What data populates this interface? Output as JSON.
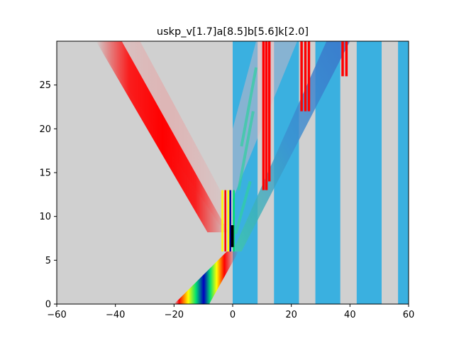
{
  "chart_data": {
    "type": "heatmap",
    "title": "uskp_v[1.7]a[8.5]b[5.6]k[2.0]",
    "xlabel": "",
    "ylabel": "",
    "xlim": [
      -60,
      60
    ],
    "ylim": [
      0,
      30
    ],
    "x_ticks": [
      -60,
      -40,
      -20,
      0,
      20,
      40,
      60
    ],
    "x_tick_labels": [
      "−60",
      "−40",
      "−20",
      "0",
      "20",
      "40",
      "60"
    ],
    "y_ticks": [
      0,
      5,
      10,
      15,
      20,
      25
    ],
    "y_tick_labels": [
      "0",
      "5",
      "10",
      "15",
      "20",
      "25"
    ],
    "grid": false,
    "background_value_color": "#d0d0d0",
    "colormap": "jet",
    "barrier_color": "#3ab0e0",
    "barrier_intervals_x": [
      [
        0,
        8.5
      ],
      [
        14.1,
        22.6
      ],
      [
        28.2,
        36.7
      ],
      [
        42.3,
        50.8
      ],
      [
        56.4,
        60
      ]
    ],
    "features": {
      "incoming_packet": {
        "x_at_t0": [
          -20,
          -8
        ],
        "x_at_t6": [
          -2,
          2
        ],
        "colors": [
          "red",
          "yellow",
          "green",
          "blue"
        ]
      },
      "reflected_packet": {
        "start": [
          -2,
          9
        ],
        "end": [
          -40,
          30
        ],
        "color": "red"
      },
      "transmitted_front": {
        "start": [
          0,
          6
        ],
        "end": [
          40,
          30
        ]
      }
    }
  }
}
